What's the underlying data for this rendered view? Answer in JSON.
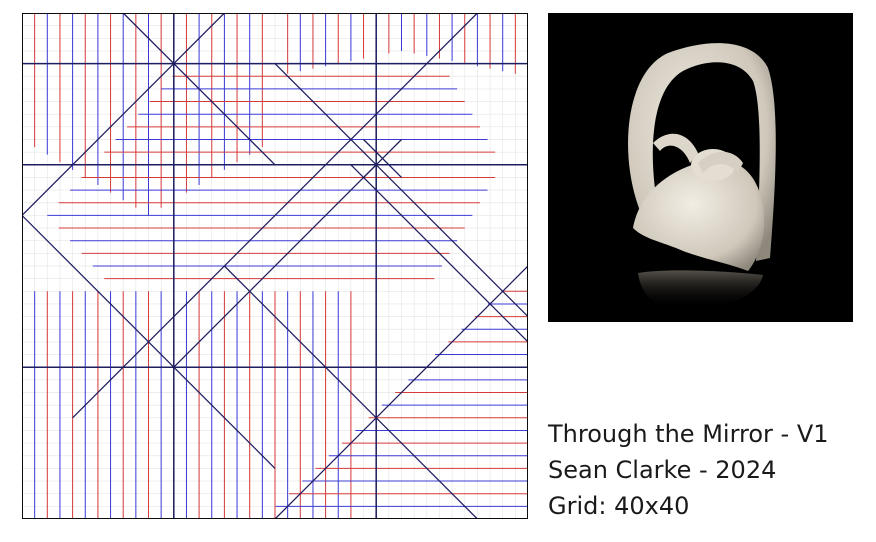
{
  "diagram": {
    "grid_divisions": 40,
    "colors": {
      "mountain": "#d63b3b",
      "valley": "#3b3bd6",
      "border": "#000000",
      "grid": "#e6e6e6",
      "axis": "#1e1e60"
    }
  },
  "photo": {
    "background": "#000000",
    "model_color": "#e8e2d8"
  },
  "caption": {
    "title": "Through the Mirror - V1",
    "author_line": "Sean Clarke - 2024",
    "grid_line": "Grid: 40x40"
  }
}
